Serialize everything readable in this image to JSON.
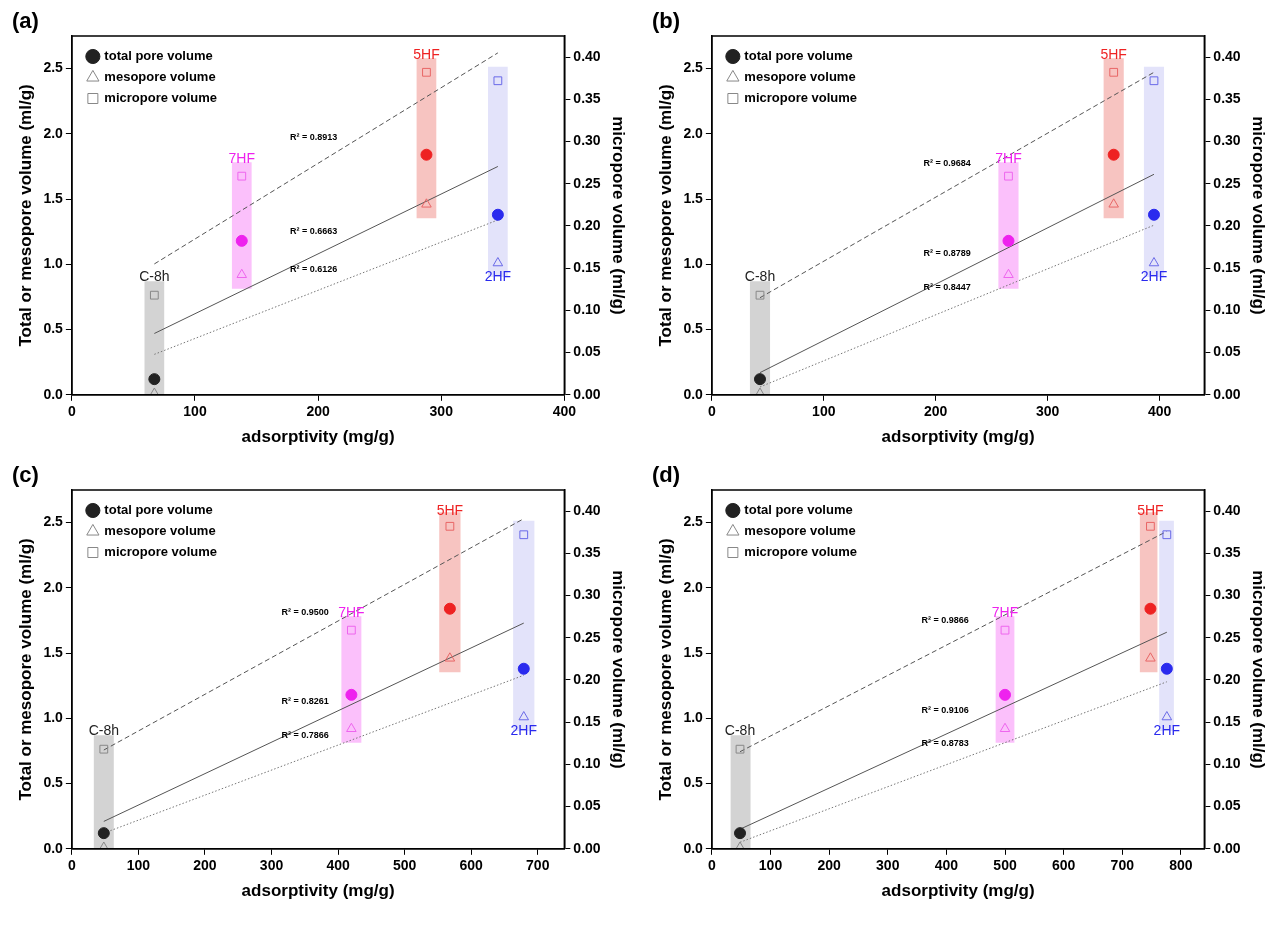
{
  "chart_data": [
    {
      "type": "scatter",
      "title": "(a)",
      "xlabel": "adsorptivity (mg/g)",
      "ylabel": "Total or mesopore volume (ml/g)",
      "y2label": "micropore volume (ml/g)",
      "legend": "top left",
      "grid": false,
      "x": [
        67,
        138,
        288,
        346
      ],
      "xlim": [
        0,
        400
      ],
      "xticks": [
        0,
        100,
        200,
        300,
        400
      ],
      "ylim": [
        0,
        2.75
      ],
      "yticks": [
        {
          "value": 0,
          "label": "0.0"
        },
        0.5,
        {
          "value": 1,
          "label": "1.0"
        },
        1.5,
        {
          "value": 2,
          "label": "2.0"
        },
        2.5
      ],
      "y2lim": [
        0,
        0.425
      ],
      "y2ticks": [
        {
          "value": 0,
          "label": "0.00"
        },
        0.05,
        {
          "value": 0.1,
          "label": "0.10"
        },
        0.15,
        {
          "value": 0.2,
          "label": "0.20"
        },
        0.25,
        {
          "value": 0.3,
          "label": "0.30"
        },
        0.35,
        {
          "value": 0.4,
          "label": "0.40"
        }
      ],
      "series": [
        {
          "name": "total pore volume",
          "type": "scatter",
          "marker": "circle",
          "color": "#222222",
          "colors": [
            "#222222",
            "#ee22ee",
            "#ee2222",
            "#2a2aee"
          ],
          "values": [
            0.12,
            1.18,
            1.84,
            1.38
          ]
        },
        {
          "name": "mesopore volume",
          "type": "scatter",
          "marker": "triangle",
          "color": "#888888",
          "colors": [
            "#888888",
            "#ee66ee",
            "#e86666",
            "#6a6ae8"
          ],
          "values": [
            0.01,
            0.92,
            1.46,
            1.01
          ]
        },
        {
          "name": "micropore volume",
          "type": "scatter",
          "marker": "square",
          "axis": "y2",
          "color": "#888888",
          "colors": [
            "#888888",
            "#ee66ee",
            "#e86666",
            "#6a6ae8"
          ],
          "values": [
            0.118,
            0.259,
            0.382,
            0.372
          ]
        },
        {
          "type": "line",
          "axis": "y2",
          "x": [
            67,
            346
          ],
          "values": [
            0.155,
            0.405
          ],
          "color": "#555555",
          "line_style": "dashed"
        },
        {
          "type": "line",
          "x": [
            67,
            346
          ],
          "values": [
            0.47,
            1.75
          ],
          "color": "#555555",
          "line_style": "solid"
        },
        {
          "type": "line",
          "x": [
            67,
            346
          ],
          "values": [
            0.31,
            1.34
          ],
          "color": "#777777",
          "line_style": "dotted"
        }
      ],
      "bands": [
        {
          "axis": "x",
          "from": 59,
          "to": 75,
          "color": "#d3d3d3"
        },
        {
          "axis": "x",
          "from": 130,
          "to": 146,
          "color": "#fbc0fb"
        },
        {
          "axis": "x",
          "from": 280,
          "to": 296,
          "color": "#f7c4c1"
        },
        {
          "axis": "x",
          "from": 338,
          "to": 354,
          "color": "#e3e3fa"
        }
      ],
      "annotations": [
        {
          "text": "C-8h",
          "x": 67,
          "y": 0.9
        },
        {
          "text": "7HF",
          "x": 138,
          "y": 1.81
        },
        {
          "text": "5HF",
          "x": 288,
          "y": 2.6
        },
        {
          "text": "2HF",
          "x": 346,
          "y": 0.9
        },
        "R² = 0.8913",
        "R² = 0.6663",
        "R² = 0.6126"
      ]
    },
    {
      "type": "scatter",
      "title": "(b)",
      "xlabel": "adsorptivity (mg/g)",
      "ylabel": "Total or mesopore volume (ml/g)",
      "y2label": "micropore volume (ml/g)",
      "legend": "top left",
      "grid": false,
      "x": [
        43,
        265,
        359,
        395
      ],
      "xlim": [
        0,
        440
      ],
      "xticks": [
        0,
        100,
        200,
        300,
        400
      ],
      "ylim": [
        0,
        2.75
      ],
      "yticks": [
        {
          "value": 0,
          "label": "0.0"
        },
        0.5,
        {
          "value": 1,
          "label": "1.0"
        },
        1.5,
        {
          "value": 2,
          "label": "2.0"
        },
        2.5
      ],
      "y2lim": [
        0,
        0.425
      ],
      "y2ticks": [
        {
          "value": 0,
          "label": "0.00"
        },
        0.05,
        {
          "value": 0.1,
          "label": "0.10"
        },
        0.15,
        {
          "value": 0.2,
          "label": "0.20"
        },
        0.25,
        {
          "value": 0.3,
          "label": "0.30"
        },
        0.35,
        {
          "value": 0.4,
          "label": "0.40"
        }
      ],
      "series": [
        {
          "name": "total pore volume",
          "type": "scatter",
          "marker": "circle",
          "color": "#222222",
          "colors": [
            "#222222",
            "#ee22ee",
            "#ee2222",
            "#2a2aee"
          ],
          "values": [
            0.12,
            1.18,
            1.84,
            1.38
          ]
        },
        {
          "name": "mesopore volume",
          "type": "scatter",
          "marker": "triangle",
          "color": "#888888",
          "colors": [
            "#888888",
            "#ee66ee",
            "#e86666",
            "#6a6ae8"
          ],
          "values": [
            0.01,
            0.92,
            1.46,
            1.01
          ]
        },
        {
          "name": "micropore volume",
          "type": "scatter",
          "marker": "square",
          "axis": "y2",
          "color": "#888888",
          "colors": [
            "#888888",
            "#ee66ee",
            "#e86666",
            "#6a6ae8"
          ],
          "values": [
            0.118,
            0.259,
            0.382,
            0.372
          ]
        },
        {
          "type": "line",
          "axis": "y2",
          "x": [
            43,
            395
          ],
          "values": [
            0.115,
            0.382
          ],
          "color": "#555555",
          "line_style": "dashed"
        },
        {
          "type": "line",
          "x": [
            43,
            395
          ],
          "values": [
            0.17,
            1.69
          ],
          "color": "#555555",
          "line_style": "solid"
        },
        {
          "type": "line",
          "x": [
            43,
            395
          ],
          "values": [
            0.06,
            1.3
          ],
          "color": "#777777",
          "line_style": "dotted"
        }
      ],
      "bands": [
        {
          "axis": "x",
          "from": 34,
          "to": 52,
          "color": "#d3d3d3"
        },
        {
          "axis": "x",
          "from": 256,
          "to": 274,
          "color": "#fbc0fb"
        },
        {
          "axis": "x",
          "from": 350,
          "to": 368,
          "color": "#f7c4c1"
        },
        {
          "axis": "x",
          "from": 386,
          "to": 404,
          "color": "#e3e3fa"
        }
      ],
      "annotations": [
        {
          "text": "C-8h",
          "x": 43,
          "y": 0.9
        },
        {
          "text": "7HF",
          "x": 265,
          "y": 1.81
        },
        {
          "text": "5HF",
          "x": 359,
          "y": 2.6
        },
        {
          "text": "2HF",
          "x": 395,
          "y": 0.9
        },
        "R² = 0.9684",
        "R² = 0.8789",
        "R² = 0.8447"
      ]
    },
    {
      "type": "scatter",
      "title": "(c)",
      "xlabel": "adsorptivity (mg/g)",
      "ylabel": "Total or mesopore volume (ml/g)",
      "y2label": "micropore volume (ml/g)",
      "legend": "top left",
      "grid": false,
      "x": [
        48,
        420,
        568,
        679
      ],
      "xlim": [
        0,
        740
      ],
      "xticks": [
        0,
        100,
        200,
        300,
        400,
        500,
        600,
        700
      ],
      "ylim": [
        0,
        2.75
      ],
      "yticks": [
        {
          "value": 0,
          "label": "0.0"
        },
        0.5,
        {
          "value": 1,
          "label": "1.0"
        },
        1.5,
        {
          "value": 2,
          "label": "2.0"
        },
        2.5
      ],
      "y2lim": [
        0,
        0.425
      ],
      "y2ticks": [
        {
          "value": 0,
          "label": "0.00"
        },
        0.05,
        {
          "value": 0.1,
          "label": "0.10"
        },
        0.15,
        {
          "value": 0.2,
          "label": "0.20"
        },
        0.25,
        {
          "value": 0.3,
          "label": "0.30"
        },
        0.35,
        {
          "value": 0.4,
          "label": "0.40"
        }
      ],
      "series": [
        {
          "name": "total pore volume",
          "type": "scatter",
          "marker": "circle",
          "color": "#222222",
          "colors": [
            "#222222",
            "#ee22ee",
            "#ee2222",
            "#2a2aee"
          ],
          "values": [
            0.12,
            1.18,
            1.84,
            1.38
          ]
        },
        {
          "name": "mesopore volume",
          "type": "scatter",
          "marker": "triangle",
          "color": "#888888",
          "colors": [
            "#888888",
            "#ee66ee",
            "#e86666",
            "#6a6ae8"
          ],
          "values": [
            0.01,
            0.92,
            1.46,
            1.01
          ]
        },
        {
          "name": "micropore volume",
          "type": "scatter",
          "marker": "square",
          "axis": "y2",
          "color": "#888888",
          "colors": [
            "#888888",
            "#ee66ee",
            "#e86666",
            "#6a6ae8"
          ],
          "values": [
            0.118,
            0.259,
            0.382,
            0.372
          ]
        },
        {
          "type": "line",
          "axis": "y2",
          "x": [
            48,
            679
          ],
          "values": [
            0.117,
            0.391
          ],
          "color": "#555555",
          "line_style": "dashed"
        },
        {
          "type": "line",
          "x": [
            48,
            679
          ],
          "values": [
            0.21,
            1.73
          ],
          "color": "#555555",
          "line_style": "solid"
        },
        {
          "type": "line",
          "x": [
            48,
            679
          ],
          "values": [
            0.12,
            1.33
          ],
          "color": "#777777",
          "line_style": "dotted"
        }
      ],
      "bands": [
        {
          "axis": "x",
          "from": 33,
          "to": 63,
          "color": "#d3d3d3"
        },
        {
          "axis": "x",
          "from": 405,
          "to": 435,
          "color": "#fbc0fb"
        },
        {
          "axis": "x",
          "from": 552,
          "to": 584,
          "color": "#f7c4c1"
        },
        {
          "axis": "x",
          "from": 663,
          "to": 695,
          "color": "#e3e3fa"
        }
      ],
      "annotations": [
        {
          "text": "C-8h",
          "x": 48,
          "y": 0.9
        },
        {
          "text": "7HF",
          "x": 420,
          "y": 1.81
        },
        {
          "text": "5HF",
          "x": 568,
          "y": 2.59
        },
        {
          "text": "2HF",
          "x": 679,
          "y": 0.9
        },
        "R² = 0.9500",
        "R² = 0.8261",
        "R² = 0.7866"
      ]
    },
    {
      "type": "scatter",
      "title": "(d)",
      "xlabel": "adsorptivity (mg/g)",
      "ylabel": "Total or mesopore volume (ml/g)",
      "y2label": "micropore volume (ml/g)",
      "legend": "top left",
      "grid": false,
      "x": [
        48,
        500,
        748,
        776
      ],
      "xlim": [
        0,
        840
      ],
      "xticks": [
        0,
        100,
        200,
        300,
        400,
        500,
        600,
        700,
        800
      ],
      "ylim": [
        0,
        2.75
      ],
      "yticks": [
        {
          "value": 0,
          "label": "0.0"
        },
        0.5,
        {
          "value": 1,
          "label": "1.0"
        },
        1.5,
        {
          "value": 2,
          "label": "2.0"
        },
        2.5
      ],
      "y2lim": [
        0,
        0.425
      ],
      "y2ticks": [
        {
          "value": 0,
          "label": "0.00"
        },
        0.05,
        {
          "value": 0.1,
          "label": "0.10"
        },
        0.15,
        {
          "value": 0.2,
          "label": "0.20"
        },
        0.25,
        {
          "value": 0.3,
          "label": "0.30"
        },
        0.35,
        {
          "value": 0.4,
          "label": "0.40"
        }
      ],
      "series": [
        {
          "name": "total pore volume",
          "type": "scatter",
          "marker": "circle",
          "color": "#222222",
          "colors": [
            "#222222",
            "#ee22ee",
            "#ee2222",
            "#2a2aee"
          ],
          "values": [
            0.12,
            1.18,
            1.84,
            1.38
          ]
        },
        {
          "name": "mesopore volume",
          "type": "scatter",
          "marker": "triangle",
          "color": "#888888",
          "colors": [
            "#888888",
            "#ee66ee",
            "#e86666",
            "#6a6ae8"
          ],
          "values": [
            0.01,
            0.92,
            1.46,
            1.01
          ]
        },
        {
          "name": "micropore volume",
          "type": "scatter",
          "marker": "square",
          "axis": "y2",
          "color": "#888888",
          "colors": [
            "#888888",
            "#ee66ee",
            "#e86666",
            "#6a6ae8"
          ],
          "values": [
            0.118,
            0.259,
            0.382,
            0.372
          ]
        },
        {
          "type": "line",
          "axis": "y2",
          "x": [
            48,
            776
          ],
          "values": [
            0.115,
            0.376
          ],
          "color": "#555555",
          "line_style": "dashed"
        },
        {
          "type": "line",
          "x": [
            48,
            776
          ],
          "values": [
            0.15,
            1.66
          ],
          "color": "#555555",
          "line_style": "solid"
        },
        {
          "type": "line",
          "x": [
            48,
            776
          ],
          "values": [
            0.05,
            1.28
          ],
          "color": "#777777",
          "line_style": "dotted"
        }
      ],
      "bands": [
        {
          "axis": "x",
          "from": 32,
          "to": 66,
          "color": "#d3d3d3"
        },
        {
          "axis": "x",
          "from": 484,
          "to": 516,
          "color": "#fbc0fb"
        },
        {
          "axis": "x",
          "from": 730,
          "to": 760,
          "color": "#f7c4c1"
        },
        {
          "axis": "x",
          "from": 763,
          "to": 788,
          "color": "#e3e3fa"
        }
      ],
      "annotations": [
        {
          "text": "C-8h",
          "x": 48,
          "y": 0.9
        },
        {
          "text": "7HF",
          "x": 500,
          "y": 1.81
        },
        {
          "text": "5HF",
          "x": 748,
          "y": 2.59
        },
        {
          "text": "2HF",
          "x": 776,
          "y": 0.9
        },
        "R² = 0.9866",
        "R² = 0.9106",
        "R² = 0.8783"
      ]
    }
  ]
}
